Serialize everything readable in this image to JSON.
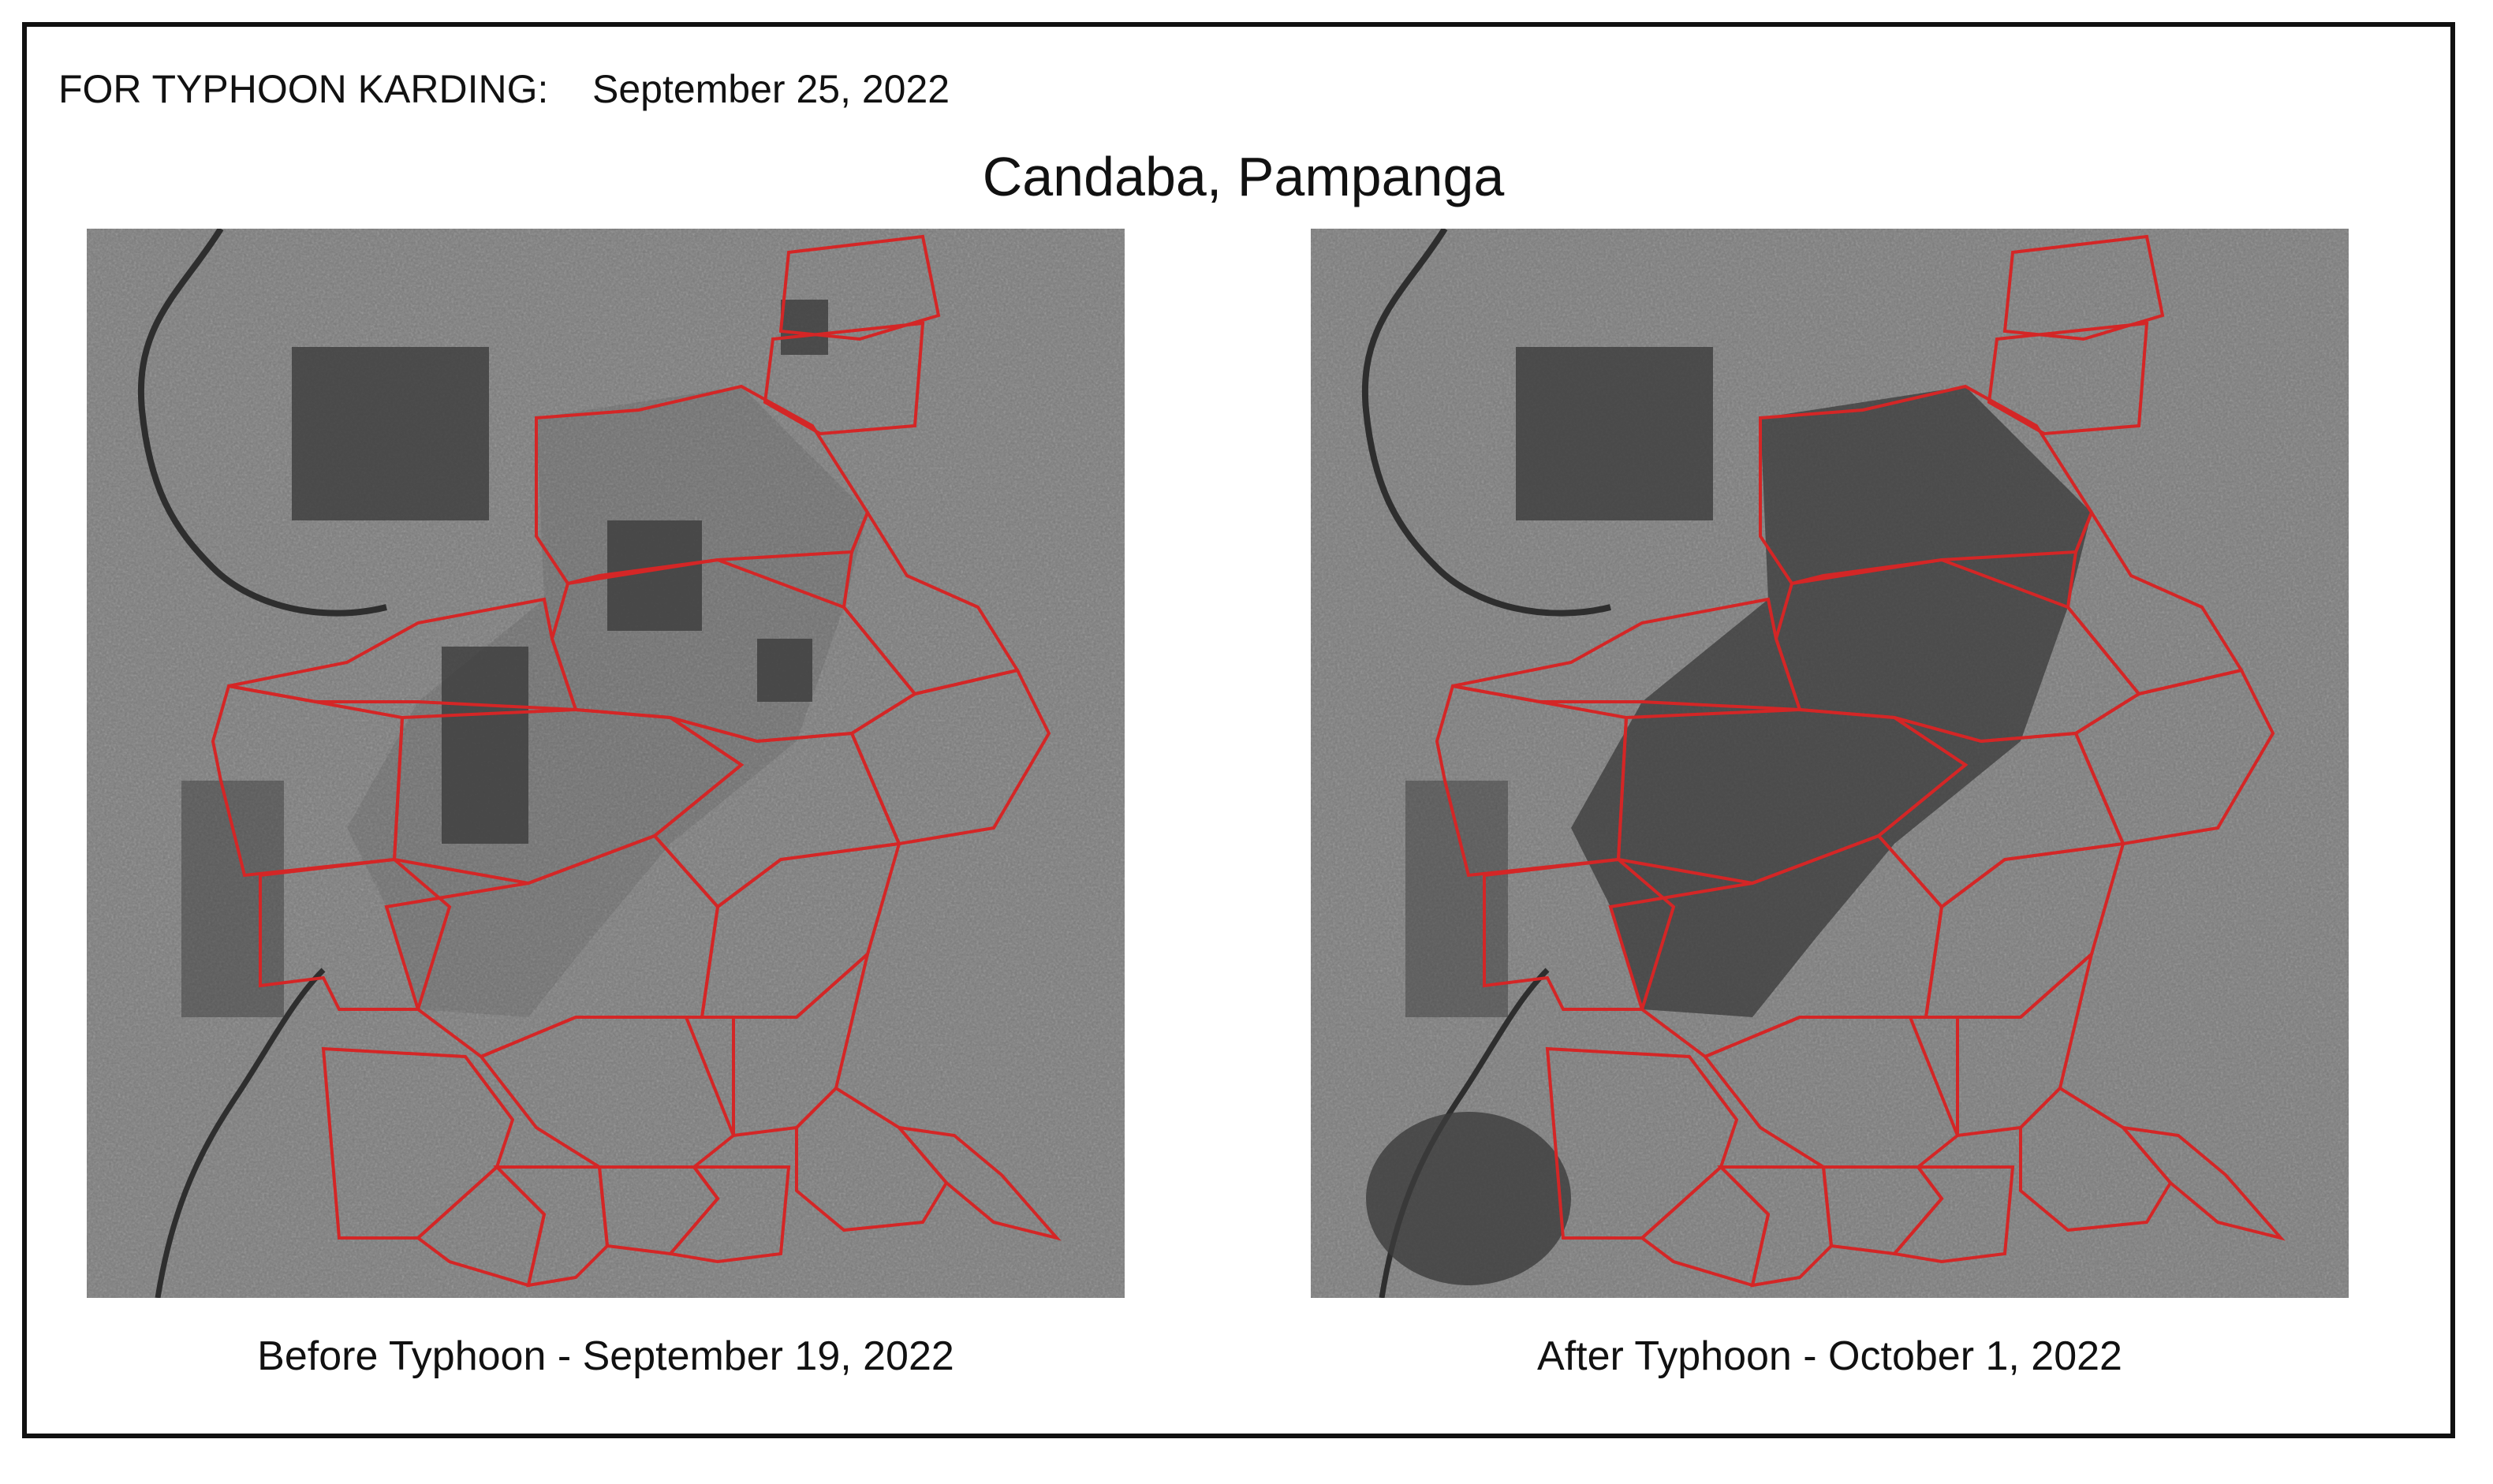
{
  "header": {
    "event_label": "FOR TYPHOON KARDING:",
    "event_date": "September 25, 2022"
  },
  "title": "Candaba, Pampanga",
  "panels": [
    {
      "id": "before",
      "caption": "Before Typhoon - September 19, 2022",
      "flood_level": 0.15
    },
    {
      "id": "after",
      "caption": "After Typhoon - October 1, 2022",
      "flood_level": 0.75
    }
  ],
  "colors": {
    "boundary": "#d42626",
    "land": "#7d7d7d",
    "water": "#3a3a3a",
    "frame": "#111111"
  }
}
